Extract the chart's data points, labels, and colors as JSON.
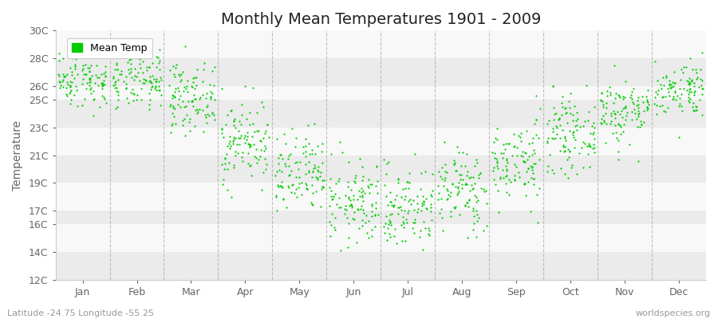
{
  "title": "Monthly Mean Temperatures 1901 - 2009",
  "ylabel": "Temperature",
  "xlabel_months": [
    "Jan",
    "Feb",
    "Mar",
    "Apr",
    "May",
    "Jun",
    "Jul",
    "Aug",
    "Sep",
    "Oct",
    "Nov",
    "Dec"
  ],
  "yticks": [
    12,
    14,
    16,
    17,
    19,
    21,
    23,
    25,
    26,
    28,
    30
  ],
  "ytick_labels": [
    "12C",
    "14C",
    "16C",
    "17C",
    "19C",
    "21C",
    "23C",
    "25C",
    "26C",
    "28C",
    "30C"
  ],
  "ylim": [
    12,
    30
  ],
  "dot_color": "#00CC00",
  "dot_size": 2.5,
  "background_color": "#ffffff",
  "band_colors": [
    "#ebebeb",
    "#f8f8f8",
    "#ebebeb",
    "#f8f8f8",
    "#ebebeb",
    "#f8f8f8",
    "#ebebeb",
    "#f8f8f8",
    "#ebebeb",
    "#f8f8f8"
  ],
  "legend_label": "Mean Temp",
  "footer_left": "Latitude -24.75 Longitude -55.25",
  "footer_right": "worldspecies.org",
  "monthly_mean": [
    26.5,
    26.3,
    25.2,
    22.0,
    19.5,
    17.5,
    17.2,
    18.5,
    20.5,
    22.5,
    24.2,
    25.8
  ],
  "monthly_std": [
    1.0,
    1.0,
    1.2,
    1.5,
    1.5,
    1.5,
    1.5,
    1.5,
    1.5,
    1.3,
    1.2,
    1.0
  ],
  "n_years": 109,
  "seed": 42,
  "dashed_line_color": "#999999",
  "spine_color": "#cccccc",
  "tick_color": "#666666",
  "title_color": "#222222",
  "ylabel_color": "#666666",
  "footer_color": "#999999",
  "title_fontsize": 14,
  "tick_fontsize": 9,
  "ylabel_fontsize": 10,
  "footer_fontsize": 8,
  "legend_fontsize": 9
}
